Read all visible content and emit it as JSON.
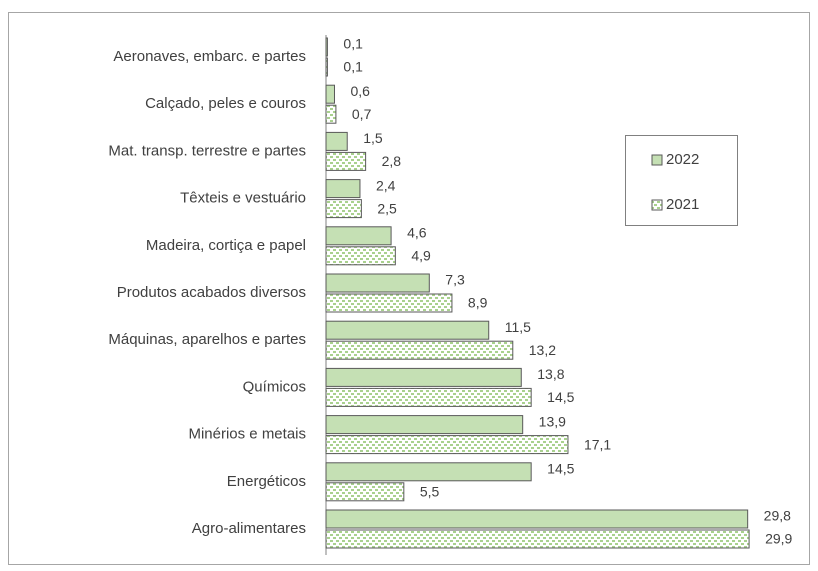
{
  "chart_data": {
    "type": "hbar",
    "categories": [
      "Aeronaves, embarc. e partes",
      "Calçado, peles e couros",
      "Mat. transp. terrestre e partes",
      "Têxteis e vestuário",
      "Madeira, cortiça e papel",
      "Produtos acabados diversos",
      "Máquinas, aparelhos e partes",
      "Químicos",
      "Minérios e metais",
      "Energéticos",
      "Agro-alimentares"
    ],
    "series": [
      {
        "name": "2022",
        "color": "#c5e0b4",
        "values": [
          0.1,
          0.6,
          1.5,
          2.4,
          4.6,
          7.3,
          11.5,
          13.8,
          13.9,
          14.5,
          29.8
        ],
        "value_labels": [
          "0,1",
          "0,6",
          "1,5",
          "2,4",
          "4,6",
          "7,3",
          "11,5",
          "13,8",
          "13,9",
          "14,5",
          "29,8"
        ]
      },
      {
        "name": "2021",
        "color": "#a9d18e",
        "hatch": "dots",
        "values": [
          0.1,
          0.7,
          2.8,
          2.5,
          4.9,
          8.9,
          13.2,
          14.5,
          17.1,
          5.5,
          29.9
        ],
        "value_labels": [
          "0,1",
          "0,7",
          "2,8",
          "2,5",
          "4,9",
          "8,9",
          "13,2",
          "14,5",
          "17,1",
          "5,5",
          "29,9"
        ]
      }
    ],
    "legend": "right"
  }
}
